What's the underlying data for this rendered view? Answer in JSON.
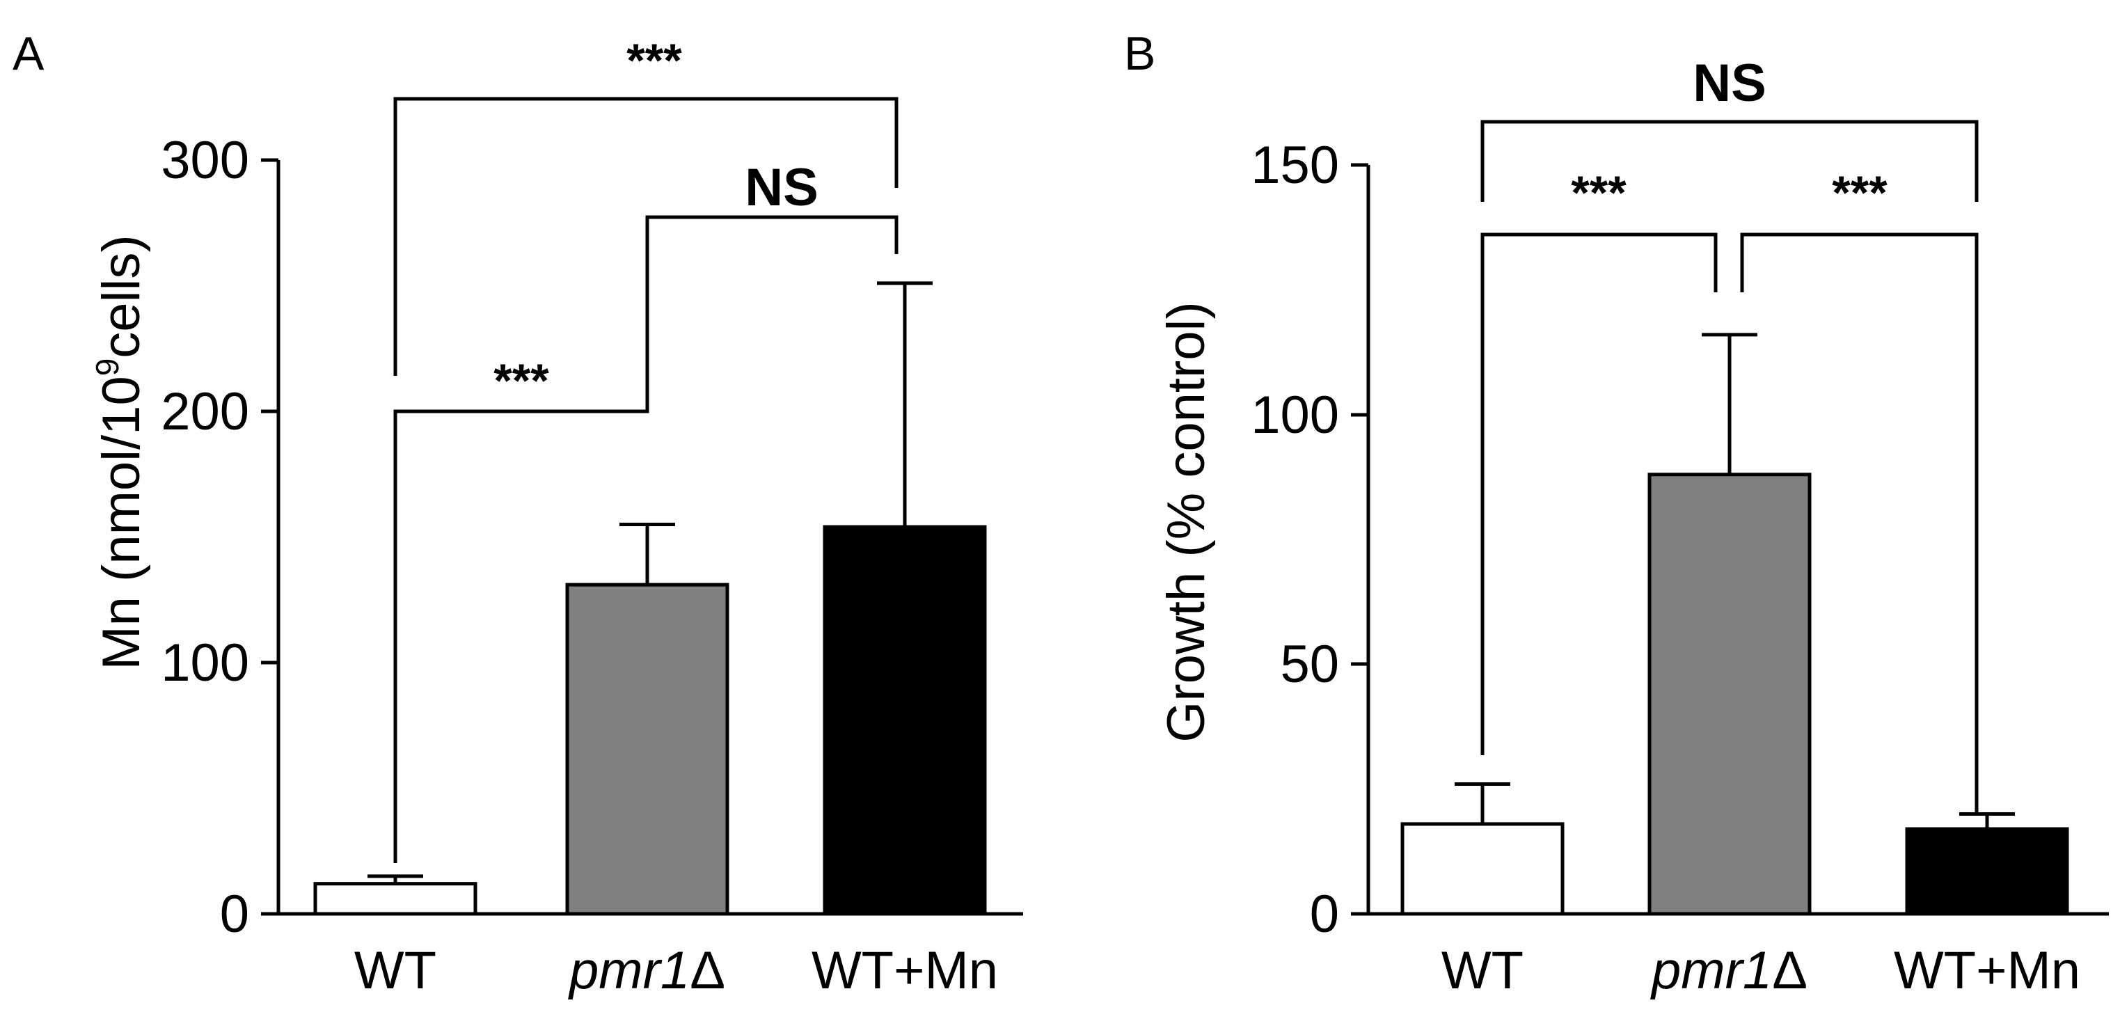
{
  "chart_data": [
    {
      "type": "bar",
      "panel": "A",
      "categories": [
        {
          "pre": "WT",
          "it": "",
          "post": ""
        },
        {
          "pre": "",
          "it": "pmr1",
          "post": "Δ"
        },
        {
          "pre": "WT+Mn",
          "it": "",
          "post": ""
        }
      ],
      "values": [
        12,
        131,
        154
      ],
      "errors": [
        3,
        24,
        97
      ],
      "bar_colors": [
        "#ffffff",
        "#808080",
        "#000000"
      ],
      "ylabel": {
        "main": "Mn (nmol/10",
        "sup": "9",
        "tail": "cells)"
      },
      "ylim": [
        0,
        300
      ],
      "yticks": [
        "0",
        "100",
        "200",
        "300"
      ],
      "comparisons": [
        {
          "from": 0,
          "to": 1,
          "label": "***"
        },
        {
          "from": 1,
          "to": 2,
          "label": "NS"
        },
        {
          "from": 0,
          "to": 2,
          "label": "***"
        }
      ]
    },
    {
      "type": "bar",
      "panel": "B",
      "categories": [
        {
          "pre": "WT",
          "it": "",
          "post": ""
        },
        {
          "pre": "",
          "it": "pmr1",
          "post": "Δ"
        },
        {
          "pre": "WT+Mn",
          "it": "",
          "post": ""
        }
      ],
      "values": [
        18,
        88,
        17
      ],
      "errors": [
        8,
        28,
        3
      ],
      "bar_colors": [
        "#ffffff",
        "#808080",
        "#000000"
      ],
      "ylabel": {
        "main": "Growth (% control)",
        "sup": "",
        "tail": ""
      },
      "ylim": [
        0,
        150
      ],
      "yticks": [
        "0",
        "50",
        "100",
        "150"
      ],
      "comparisons": [
        {
          "from": 0,
          "to": 1,
          "label": "***"
        },
        {
          "from": 1,
          "to": 2,
          "label": "***"
        },
        {
          "from": 0,
          "to": 2,
          "label": "NS"
        }
      ]
    }
  ]
}
